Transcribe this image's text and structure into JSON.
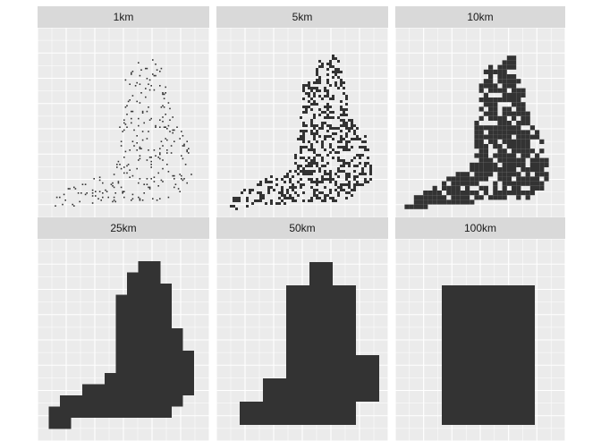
{
  "figure": {
    "type": "faceted raster map grid",
    "layout": "2 rows x 3 columns",
    "background": "#ffffff",
    "panel_background": "#ebebeb",
    "strip_background": "#d9d9d9",
    "grid_color": "#ffffff",
    "fill_color": "#333333",
    "axes_labels_shown": false
  },
  "chart_data": [
    {
      "type": "heatmap",
      "facet_label": "1km",
      "resolution_km": 1,
      "occupancy_level": 0.05,
      "occupancy_description": "sparse scattered single points"
    },
    {
      "type": "heatmap",
      "facet_label": "5km",
      "resolution_km": 5,
      "occupancy_level": 0.35,
      "occupancy_description": "dense speckle, shape of England visible"
    },
    {
      "type": "heatmap",
      "facet_label": "10km",
      "resolution_km": 10,
      "occupancy_level": 0.75,
      "occupancy_description": "mostly filled with small gaps"
    },
    {
      "type": "heatmap",
      "facet_label": "25km",
      "resolution_km": 25,
      "occupancy_level": 1.0,
      "occupancy_description": "solid blocky England silhouette"
    },
    {
      "type": "heatmap",
      "facet_label": "50km",
      "resolution_km": 50,
      "occupancy_level": 1.0,
      "occupancy_description": "solid coarse silhouette"
    },
    {
      "type": "heatmap",
      "facet_label": "100km",
      "resolution_km": 100,
      "occupancy_level": 1.0,
      "occupancy_description": "few very large blocks"
    }
  ]
}
